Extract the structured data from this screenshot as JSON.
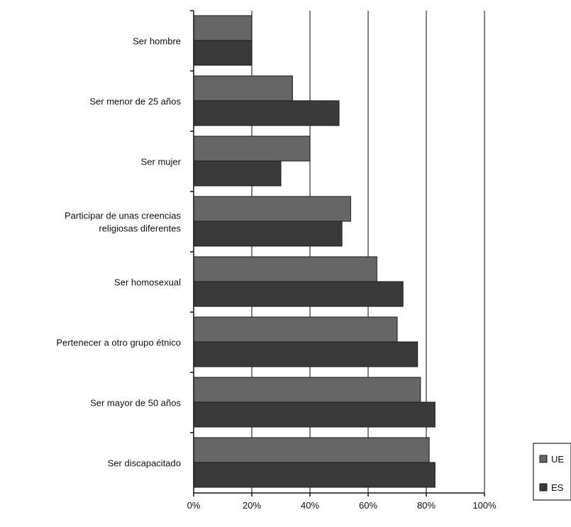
{
  "chart_data": {
    "type": "bar",
    "orientation": "horizontal",
    "title": "",
    "xlabel": "",
    "ylabel": "",
    "categories": [
      [
        "Ser hombre"
      ],
      [
        "Ser menor de 25 años"
      ],
      [
        "Ser mujer"
      ],
      [
        "Participar de unas creencias",
        "religiosas diferentes"
      ],
      [
        "Ser homosexual"
      ],
      [
        "Pertenecer a otro grupo étnico"
      ],
      [
        "Ser mayor de 50 años"
      ],
      [
        "Ser discapacitado"
      ]
    ],
    "series": [
      {
        "name": "UE",
        "color": "#666666",
        "values": [
          20,
          34,
          40,
          54,
          63,
          70,
          78,
          81
        ]
      },
      {
        "name": "ES",
        "color": "#3a3a3a",
        "values": [
          20,
          50,
          30,
          51,
          72,
          77,
          83,
          83
        ]
      }
    ],
    "xlim": [
      0,
      100
    ],
    "xticks": [
      "0%",
      "20%",
      "40%",
      "60%",
      "80%",
      "100%"
    ],
    "grid": "vertical",
    "legend": "bottom-right"
  }
}
